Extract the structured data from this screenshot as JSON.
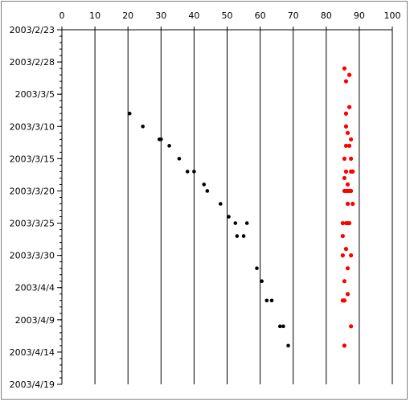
{
  "chart_data": {
    "type": "scatter",
    "title": "",
    "xlabel": "",
    "ylabel": "",
    "x_axis": {
      "min": 0,
      "max": 100,
      "major": 10,
      "ticks": [
        "0",
        "10",
        "20",
        "30",
        "40",
        "50",
        "60",
        "70",
        "80",
        "90",
        "100"
      ],
      "position": "top",
      "grid": true
    },
    "y_axis": {
      "start": "2003-02-23",
      "end": "2003-04-19",
      "reversed": true,
      "ticks": [
        "2003/2/23",
        "2003/2/28",
        "2003/3/5",
        "2003/3/10",
        "2003/3/15",
        "2003/3/20",
        "2003/3/25",
        "2003/3/30",
        "2003/4/4",
        "2003/4/9",
        "2003/4/14",
        "2003/4/19"
      ],
      "grid": false
    },
    "legend": "none",
    "series": [
      {
        "color": "#000000",
        "points": [
          {
            "x": 20.5,
            "y": "2003-03-08"
          },
          {
            "x": 24.5,
            "y": "2003-03-10"
          },
          {
            "x": 29.5,
            "y": "2003-03-12"
          },
          {
            "x": 30.0,
            "y": "2003-03-12"
          },
          {
            "x": 32.5,
            "y": "2003-03-13"
          },
          {
            "x": 35.5,
            "y": "2003-03-15"
          },
          {
            "x": 38.0,
            "y": "2003-03-17"
          },
          {
            "x": 40.0,
            "y": "2003-03-17"
          },
          {
            "x": 43.0,
            "y": "2003-03-19"
          },
          {
            "x": 44.0,
            "y": "2003-03-20"
          },
          {
            "x": 48.0,
            "y": "2003-03-22"
          },
          {
            "x": 50.5,
            "y": "2003-03-24"
          },
          {
            "x": 52.5,
            "y": "2003-03-25"
          },
          {
            "x": 56.0,
            "y": "2003-03-25"
          },
          {
            "x": 53.0,
            "y": "2003-03-27"
          },
          {
            "x": 55.0,
            "y": "2003-03-27"
          },
          {
            "x": 59.0,
            "y": "2003-04-01"
          },
          {
            "x": 60.5,
            "y": "2003-04-03"
          },
          {
            "x": 62.0,
            "y": "2003-04-06"
          },
          {
            "x": 63.5,
            "y": "2003-04-06"
          },
          {
            "x": 66.0,
            "y": "2003-04-10"
          },
          {
            "x": 67.0,
            "y": "2003-04-10"
          },
          {
            "x": 68.5,
            "y": "2003-04-13"
          }
        ]
      },
      {
        "color": "#ff0000",
        "points": [
          {
            "x": 85.5,
            "y": "2003-03-01"
          },
          {
            "x": 87.0,
            "y": "2003-03-02"
          },
          {
            "x": 86.0,
            "y": "2003-03-03"
          },
          {
            "x": 87.0,
            "y": "2003-03-07"
          },
          {
            "x": 86.0,
            "y": "2003-03-08"
          },
          {
            "x": 86.0,
            "y": "2003-03-10"
          },
          {
            "x": 86.5,
            "y": "2003-03-11"
          },
          {
            "x": 87.5,
            "y": "2003-03-12"
          },
          {
            "x": 86.0,
            "y": "2003-03-13"
          },
          {
            "x": 87.0,
            "y": "2003-03-13"
          },
          {
            "x": 85.5,
            "y": "2003-03-15"
          },
          {
            "x": 87.5,
            "y": "2003-03-15"
          },
          {
            "x": 86.0,
            "y": "2003-03-17"
          },
          {
            "x": 87.5,
            "y": "2003-03-17"
          },
          {
            "x": 88.0,
            "y": "2003-03-17"
          },
          {
            "x": 85.5,
            "y": "2003-03-18"
          },
          {
            "x": 86.5,
            "y": "2003-03-19"
          },
          {
            "x": 85.5,
            "y": "2003-03-20"
          },
          {
            "x": 86.0,
            "y": "2003-03-20"
          },
          {
            "x": 86.5,
            "y": "2003-03-20"
          },
          {
            "x": 87.0,
            "y": "2003-03-20"
          },
          {
            "x": 87.5,
            "y": "2003-03-20"
          },
          {
            "x": 86.5,
            "y": "2003-03-22"
          },
          {
            "x": 88.0,
            "y": "2003-03-22"
          },
          {
            "x": 85.0,
            "y": "2003-03-25"
          },
          {
            "x": 86.0,
            "y": "2003-03-25"
          },
          {
            "x": 86.5,
            "y": "2003-03-25"
          },
          {
            "x": 87.0,
            "y": "2003-03-25"
          },
          {
            "x": 85.0,
            "y": "2003-03-27"
          },
          {
            "x": 86.0,
            "y": "2003-03-29"
          },
          {
            "x": 85.0,
            "y": "2003-03-30"
          },
          {
            "x": 87.5,
            "y": "2003-03-30"
          },
          {
            "x": 86.5,
            "y": "2003-04-01"
          },
          {
            "x": 85.5,
            "y": "2003-04-03"
          },
          {
            "x": 86.5,
            "y": "2003-04-05"
          },
          {
            "x": 85.0,
            "y": "2003-04-06"
          },
          {
            "x": 85.5,
            "y": "2003-04-06"
          },
          {
            "x": 87.5,
            "y": "2003-04-10"
          },
          {
            "x": 85.5,
            "y": "2003-04-13"
          }
        ]
      }
    ]
  }
}
